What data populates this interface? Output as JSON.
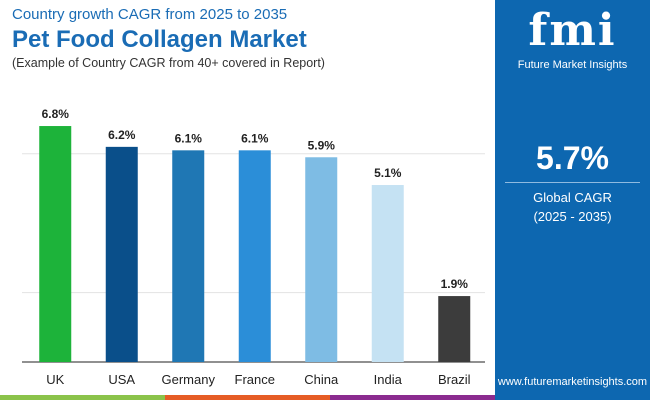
{
  "header": {
    "subtitle": "Country growth CAGR from 2025 to 2035",
    "title": "Pet Food Collagen Market",
    "note": "(Example of Country CAGR from 40+ covered in Report)"
  },
  "panel": {
    "logo": "fmi",
    "logo_text": "Future Market Insights",
    "value": "5.7%",
    "label": "Global CAGR",
    "period": "(2025 - 2035)",
    "url": "www.futuremarketinsights.com",
    "bg": "#0d67b0"
  },
  "chart_data": {
    "type": "bar",
    "title": "Pet Food Collagen Market",
    "categories": [
      "UK",
      "USA",
      "Germany",
      "France",
      "China",
      "India",
      "Brazil"
    ],
    "values": [
      6.8,
      6.2,
      6.1,
      6.1,
      5.9,
      5.1,
      1.9
    ],
    "labels": [
      "6.8%",
      "6.2%",
      "6.1%",
      "6.1%",
      "5.9%",
      "5.1%",
      "1.9%"
    ],
    "colors": [
      "#1db33a",
      "#0a4f8a",
      "#1f77b4",
      "#2b8ed8",
      "#7ebce4",
      "#c5e2f3",
      "#3c3c3c"
    ],
    "ylim": [
      0,
      7
    ],
    "grid_values": [
      2,
      6
    ],
    "xlabel": "",
    "ylabel": ""
  }
}
